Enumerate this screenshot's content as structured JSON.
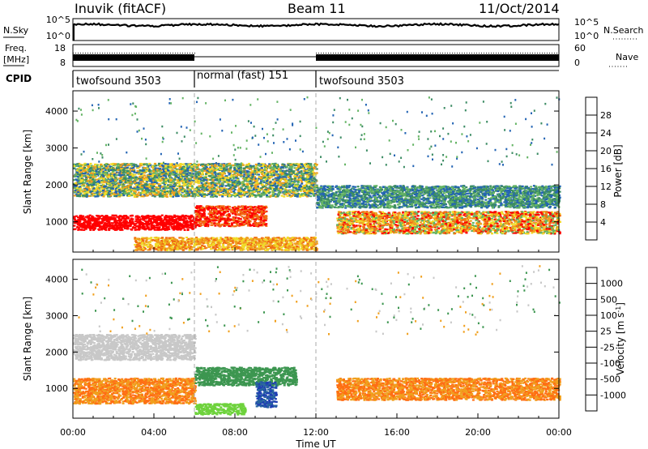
{
  "header": {
    "title": "Inuvik (fitACF)",
    "beam": "Beam 11",
    "date": "11/Oct/2014"
  },
  "noise_panel": {
    "left_label": "N.Sky",
    "right_label": "N.Search",
    "left_ticks": [
      "10^5",
      "10^0"
    ],
    "right_ticks": [
      "10^5",
      "10^0"
    ]
  },
  "freq_panel": {
    "left_label_line1": "Freq.",
    "left_label_line2": "[MHz]",
    "left_ticks": [
      "18",
      "8"
    ],
    "right_label": "Nave",
    "right_ticks": [
      "60",
      "0"
    ]
  },
  "cpid": {
    "label": "CPID",
    "segments": [
      {
        "label": "twofsound 3503",
        "start_hour": 0,
        "end_hour": 6
      },
      {
        "label": "normal (fast) 151",
        "start_hour": 6,
        "end_hour": 12
      },
      {
        "label": "twofsound 3503",
        "start_hour": 12,
        "end_hour": 24
      }
    ]
  },
  "colors": {
    "power_scale": [
      "#1432e6",
      "#2364b4",
      "#3c8c64",
      "#64b464",
      "#f0dc28",
      "#f0a01e",
      "#f06e14",
      "#ff0000"
    ],
    "velocity_scale": [
      "#ff1a1a",
      "#ff6e14",
      "#f0a01e",
      "#f0c850",
      "#c8c8c8",
      "#6ed23c",
      "#3c9650",
      "#2864a0",
      "#1e3cb4"
    ],
    "ground_scatter": "#c8c8c8"
  },
  "chart_data": [
    {
      "type": "heatmap",
      "name": "power",
      "xlabel": "",
      "ylabel": "Slant Range [km]",
      "xlim": [
        0,
        24
      ],
      "ylim": [
        180,
        4550
      ],
      "x_ticks": [
        0,
        4,
        8,
        12,
        16,
        20,
        24
      ],
      "y_ticks": [
        1000,
        2000,
        3000,
        4000
      ],
      "y_tick_labels": [
        "1000",
        "2000",
        "3000",
        "4000"
      ],
      "colorbar": {
        "label": "Power [dB]",
        "ticks": [
          "4",
          "8",
          "12",
          "16",
          "20",
          "24",
          "28"
        ],
        "range": [
          0,
          30
        ]
      },
      "features": [
        {
          "t_start": 0.0,
          "t_end": 6.0,
          "range_low_km": 800,
          "range_high_km": 1200,
          "level": "28+"
        },
        {
          "t_start": 6.0,
          "t_end": 9.5,
          "range_low_km": 900,
          "range_high_km": 1450,
          "level": "28+"
        },
        {
          "t_start": 3.0,
          "t_end": 12.0,
          "range_low_km": 250,
          "range_high_km": 600,
          "level": "20-28"
        },
        {
          "t_start": 0.0,
          "t_end": 12.0,
          "range_low_km": 1700,
          "range_high_km": 2600,
          "level": "8-24"
        },
        {
          "t_start": 13.0,
          "t_end": 24.0,
          "range_low_km": 700,
          "range_high_km": 1300,
          "level": "16-28"
        },
        {
          "t_start": 12.0,
          "t_end": 24.0,
          "range_low_km": 1400,
          "range_high_km": 2000,
          "level": "8-16"
        }
      ]
    },
    {
      "type": "heatmap",
      "name": "velocity",
      "xlabel": "Time UT",
      "ylabel": "Slant Range [km]",
      "xlim": [
        0,
        24
      ],
      "ylim": [
        180,
        4550
      ],
      "x_ticks": [
        0,
        4,
        8,
        12,
        16,
        20,
        24
      ],
      "x_tick_labels": [
        "00:00",
        "04:00",
        "08:00",
        "12:00",
        "16:00",
        "20:00",
        "00:00"
      ],
      "y_ticks": [
        1000,
        2000,
        3000,
        4000
      ],
      "y_tick_labels": [
        "1000",
        "2000",
        "3000",
        "4000"
      ],
      "colorbar": {
        "label": "Velocity [m s^-1]",
        "ticks": [
          "1000",
          "500",
          "100",
          "25",
          "-25",
          "-100",
          "-500",
          "-1000"
        ]
      },
      "features": [
        {
          "t_start": 0.0,
          "t_end": 6.0,
          "range_low_km": 600,
          "range_high_km": 1300,
          "velocity_class": "-100 to -500"
        },
        {
          "t_start": 0.0,
          "t_end": 6.0,
          "range_low_km": 1800,
          "range_high_km": 2500,
          "velocity_class": "ground scatter"
        },
        {
          "t_start": 6.0,
          "t_end": 11.0,
          "range_low_km": 1100,
          "range_high_km": 1600,
          "velocity_class": "100 to 500"
        },
        {
          "t_start": 6.0,
          "t_end": 8.5,
          "range_low_km": 300,
          "range_high_km": 600,
          "velocity_class": "25 to 100"
        },
        {
          "t_start": 9.0,
          "t_end": 10.0,
          "range_low_km": 500,
          "range_high_km": 1200,
          "velocity_class": "500 to 1000"
        },
        {
          "t_start": 13.0,
          "t_end": 24.0,
          "range_low_km": 700,
          "range_high_km": 1300,
          "velocity_class": "-100 to -500"
        }
      ]
    }
  ]
}
